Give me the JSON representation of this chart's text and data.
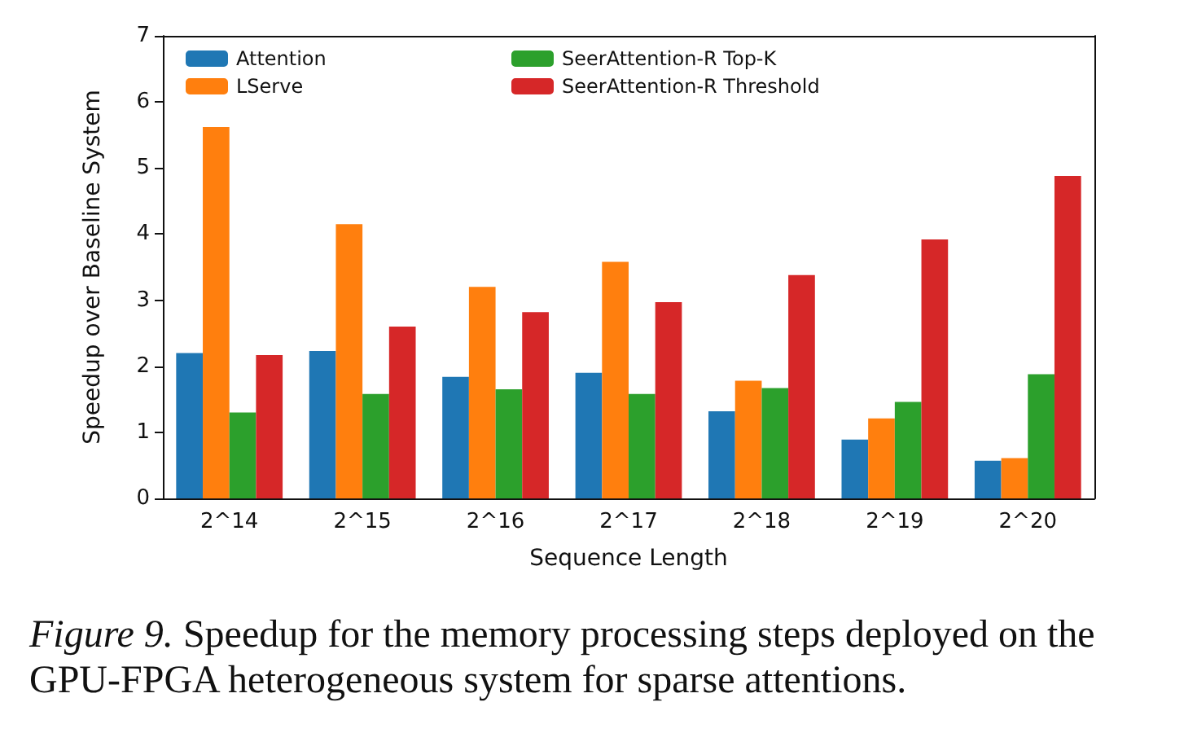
{
  "chart_data": {
    "type": "bar",
    "xlabel": "Sequence Length",
    "ylabel": "Speedup over Baseline System",
    "categories": [
      "2^14",
      "2^15",
      "2^16",
      "2^17",
      "2^18",
      "2^19",
      "2^20"
    ],
    "series": [
      {
        "name": "Attention",
        "color": "#1f77b4",
        "values": [
          2.2,
          2.23,
          1.84,
          1.9,
          1.32,
          0.89,
          0.57
        ]
      },
      {
        "name": "LServe",
        "color": "#ff7f0e",
        "values": [
          5.62,
          4.15,
          3.2,
          3.58,
          1.78,
          1.21,
          0.61
        ]
      },
      {
        "name": "SeerAttention-R Top-K",
        "color": "#2ca02c",
        "values": [
          1.3,
          1.58,
          1.65,
          1.58,
          1.67,
          1.46,
          1.88
        ]
      },
      {
        "name": "SeerAttention-R Threshold",
        "color": "#d62728",
        "values": [
          2.17,
          2.6,
          2.82,
          2.97,
          3.38,
          3.92,
          4.88
        ]
      }
    ],
    "ylim": [
      0,
      7
    ],
    "yticks": [
      0,
      1,
      2,
      3,
      4,
      5,
      6,
      7
    ],
    "grid": false,
    "legend": "top left",
    "annotations": [
      "Figure 9.",
      "Speedup for the memory processing steps deployed on the GPU-FPGA heterogeneous system for sparse attentions."
    ]
  }
}
